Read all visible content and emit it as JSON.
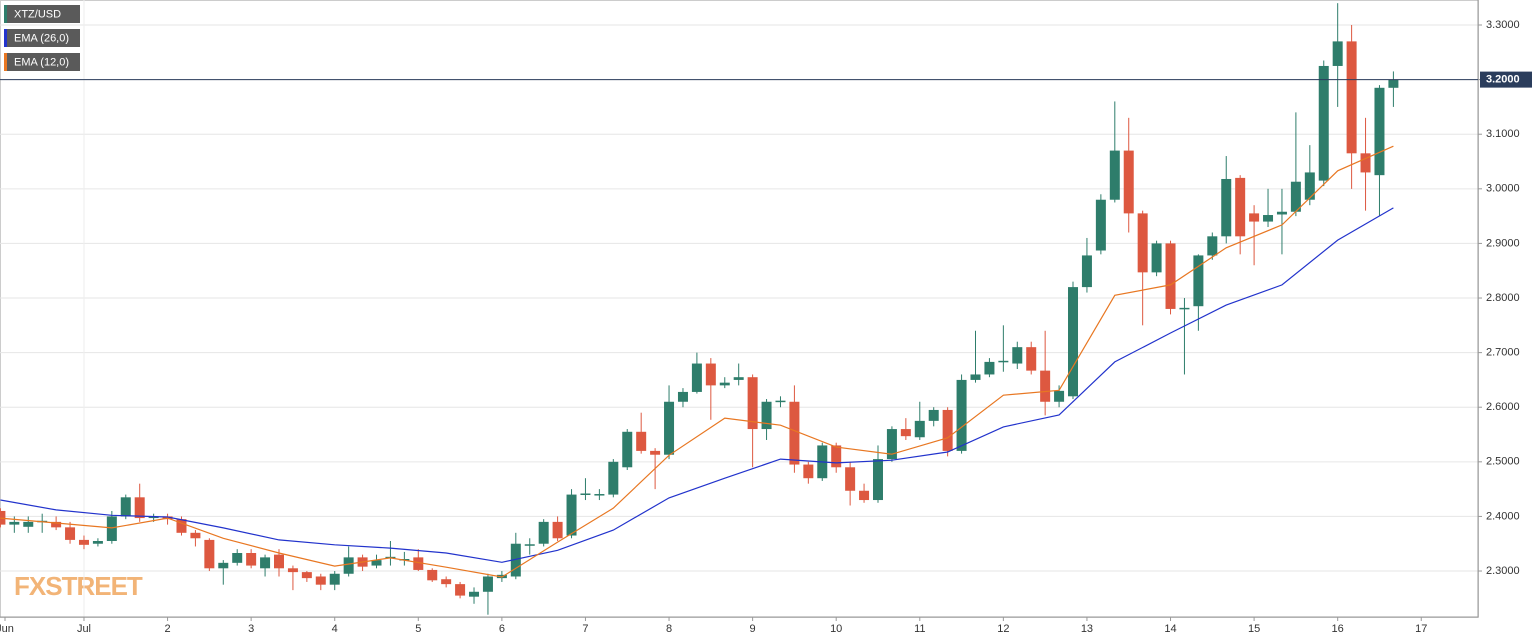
{
  "chart_data": {
    "type": "candlestick",
    "title": "XTZ/USD",
    "watermark": "FXSTREET",
    "x_labels": [
      "Jun",
      "Jul",
      "2",
      "3",
      "4",
      "5",
      "6",
      "7",
      "8",
      "9",
      "10",
      "11",
      "12",
      "13",
      "14",
      "15",
      "16",
      "17"
    ],
    "ylim": [
      2.2158,
      3.3458
    ],
    "yticks": [
      {
        "value": 2.3,
        "label": "2.3000"
      },
      {
        "value": 2.4,
        "label": "2.4000"
      },
      {
        "value": 2.5,
        "label": "2.5000"
      },
      {
        "value": 2.6,
        "label": "2.6000"
      },
      {
        "value": 2.7,
        "label": "2.7000"
      },
      {
        "value": 2.8,
        "label": "2.8000"
      },
      {
        "value": 2.9,
        "label": "2.9000"
      },
      {
        "value": 3.0,
        "label": "3.0000"
      },
      {
        "value": 3.1,
        "label": "3.1000"
      },
      {
        "value": 3.2,
        "label": "3.2000"
      },
      {
        "value": 3.3,
        "label": "3.3000"
      }
    ],
    "grid": true,
    "price_line": {
      "value": 3.2,
      "label": "3.2000",
      "color": "#2b3d5c"
    },
    "up_color": "#2e7d6b",
    "down_color": "#dd5840",
    "candles": {
      "open": [
        2.41,
        2.385,
        2.381,
        2.39,
        2.39,
        2.38,
        2.357,
        2.35,
        2.355,
        2.4,
        2.435,
        2.397,
        2.4,
        2.395,
        2.37,
        2.357,
        2.305,
        2.315,
        2.333,
        2.305,
        2.33,
        2.305,
        2.298,
        2.29,
        2.275,
        2.295,
        2.325,
        2.31,
        2.324,
        2.32,
        2.325,
        2.302,
        2.285,
        2.276,
        2.253,
        2.262,
        2.287,
        2.29,
        2.347,
        2.35,
        2.39,
        2.365,
        2.44,
        2.44,
        2.44,
        2.49,
        2.555,
        2.52,
        2.513,
        2.61,
        2.628,
        2.68,
        2.64,
        2.65,
        2.655,
        2.56,
        2.61,
        2.61,
        2.495,
        2.47,
        2.53,
        2.49,
        2.447,
        2.43,
        2.505,
        2.56,
        2.545,
        2.575,
        2.595,
        2.52,
        2.65,
        2.66,
        2.683,
        2.68,
        2.71,
        2.667,
        2.61,
        2.62,
        2.82,
        2.887,
        2.98,
        3.07,
        2.955,
        2.847,
        2.9,
        2.78,
        2.785,
        2.878,
        2.913,
        3.02,
        2.955,
        2.94,
        2.953,
        2.958,
        2.98,
        3.015,
        3.225,
        3.27,
        3.065,
        3.025,
        3.185
      ],
      "high": [
        2.415,
        2.4,
        2.4,
        2.405,
        2.4,
        2.39,
        2.365,
        2.36,
        2.41,
        2.44,
        2.46,
        2.405,
        2.405,
        2.4,
        2.375,
        2.36,
        2.32,
        2.34,
        2.34,
        2.33,
        2.34,
        2.31,
        2.3,
        2.295,
        2.3,
        2.345,
        2.33,
        2.33,
        2.355,
        2.335,
        2.34,
        2.305,
        2.29,
        2.28,
        2.27,
        2.295,
        2.3,
        2.37,
        2.36,
        2.395,
        2.4,
        2.45,
        2.47,
        2.45,
        2.505,
        2.56,
        2.59,
        2.525,
        2.64,
        2.635,
        2.7,
        2.69,
        2.655,
        2.68,
        2.66,
        2.615,
        2.62,
        2.64,
        2.5,
        2.535,
        2.535,
        2.5,
        2.46,
        2.53,
        2.565,
        2.58,
        2.61,
        2.6,
        2.6,
        2.66,
        2.74,
        2.69,
        2.75,
        2.72,
        2.72,
        2.74,
        2.64,
        2.83,
        2.91,
        2.99,
        3.16,
        3.13,
        2.96,
        2.905,
        2.905,
        2.8,
        2.88,
        2.92,
        3.06,
        3.025,
        2.97,
        3.0,
        3.0,
        3.14,
        3.08,
        3.235,
        3.34,
        3.3,
        3.13,
        3.19,
        3.215
      ],
      "low": [
        2.38,
        2.37,
        2.37,
        2.37,
        2.375,
        2.35,
        2.34,
        2.345,
        2.35,
        2.395,
        2.39,
        2.39,
        2.385,
        2.365,
        2.345,
        2.3,
        2.275,
        2.31,
        2.305,
        2.29,
        2.29,
        2.265,
        2.28,
        2.265,
        2.265,
        2.29,
        2.3,
        2.305,
        2.31,
        2.31,
        2.3,
        2.28,
        2.27,
        2.25,
        2.24,
        2.22,
        2.28,
        2.285,
        2.33,
        2.345,
        2.355,
        2.36,
        2.43,
        2.43,
        2.435,
        2.485,
        2.515,
        2.45,
        2.505,
        2.6,
        2.625,
        2.577,
        2.635,
        2.64,
        2.49,
        2.54,
        2.6,
        2.48,
        2.46,
        2.465,
        2.48,
        2.42,
        2.425,
        2.425,
        2.5,
        2.54,
        2.54,
        2.565,
        2.51,
        2.515,
        2.645,
        2.655,
        2.665,
        2.67,
        2.66,
        2.585,
        2.6,
        2.615,
        2.81,
        2.88,
        2.975,
        2.92,
        2.75,
        2.84,
        2.77,
        2.66,
        2.74,
        2.87,
        2.9,
        2.88,
        2.86,
        2.93,
        2.88,
        2.95,
        2.97,
        3.005,
        3.15,
        3.0,
        2.96,
        2.95,
        3.15
      ],
      "close": [
        2.385,
        2.39,
        2.39,
        2.392,
        2.38,
        2.357,
        2.348,
        2.355,
        2.4,
        2.435,
        2.397,
        2.4,
        2.395,
        2.37,
        2.36,
        2.305,
        2.315,
        2.333,
        2.31,
        2.325,
        2.305,
        2.298,
        2.287,
        2.275,
        2.295,
        2.325,
        2.308,
        2.32,
        2.326,
        2.322,
        2.302,
        2.283,
        2.276,
        2.255,
        2.262,
        2.29,
        2.293,
        2.35,
        2.349,
        2.39,
        2.36,
        2.44,
        2.442,
        2.441,
        2.5,
        2.555,
        2.52,
        2.513,
        2.61,
        2.628,
        2.68,
        2.64,
        2.645,
        2.655,
        2.56,
        2.61,
        2.612,
        2.495,
        2.47,
        2.53,
        2.49,
        2.447,
        2.43,
        2.505,
        2.56,
        2.547,
        2.575,
        2.595,
        2.52,
        2.65,
        2.66,
        2.683,
        2.685,
        2.71,
        2.667,
        2.61,
        2.63,
        2.82,
        2.878,
        2.98,
        3.07,
        2.955,
        2.847,
        2.9,
        2.78,
        2.782,
        2.878,
        2.913,
        3.018,
        2.913,
        2.94,
        2.952,
        2.958,
        3.013,
        3.03,
        3.225,
        3.27,
        3.065,
        3.03,
        3.185,
        3.2
      ]
    },
    "series": [
      {
        "name": "EMA (26,0)",
        "color": "#2233cc",
        "values": [
          2.43,
          2.412,
          2.402,
          2.399,
          2.379,
          2.357,
          2.348,
          2.342,
          2.333,
          2.316,
          2.338,
          2.375,
          2.434,
          2.47,
          2.505,
          2.498,
          2.503,
          2.518,
          2.564,
          2.586,
          2.683,
          2.736,
          2.787,
          2.824,
          2.906,
          2.965
        ]
      },
      {
        "name": "EMA (12,0)",
        "color": "#e87722",
        "values": [
          2.397,
          2.388,
          2.379,
          2.397,
          2.36,
          2.333,
          2.309,
          2.324,
          2.307,
          2.289,
          2.353,
          2.415,
          2.512,
          2.58,
          2.567,
          2.527,
          2.514,
          2.544,
          2.622,
          2.631,
          2.805,
          2.824,
          2.892,
          2.934,
          3.033,
          3.078
        ]
      }
    ]
  }
}
